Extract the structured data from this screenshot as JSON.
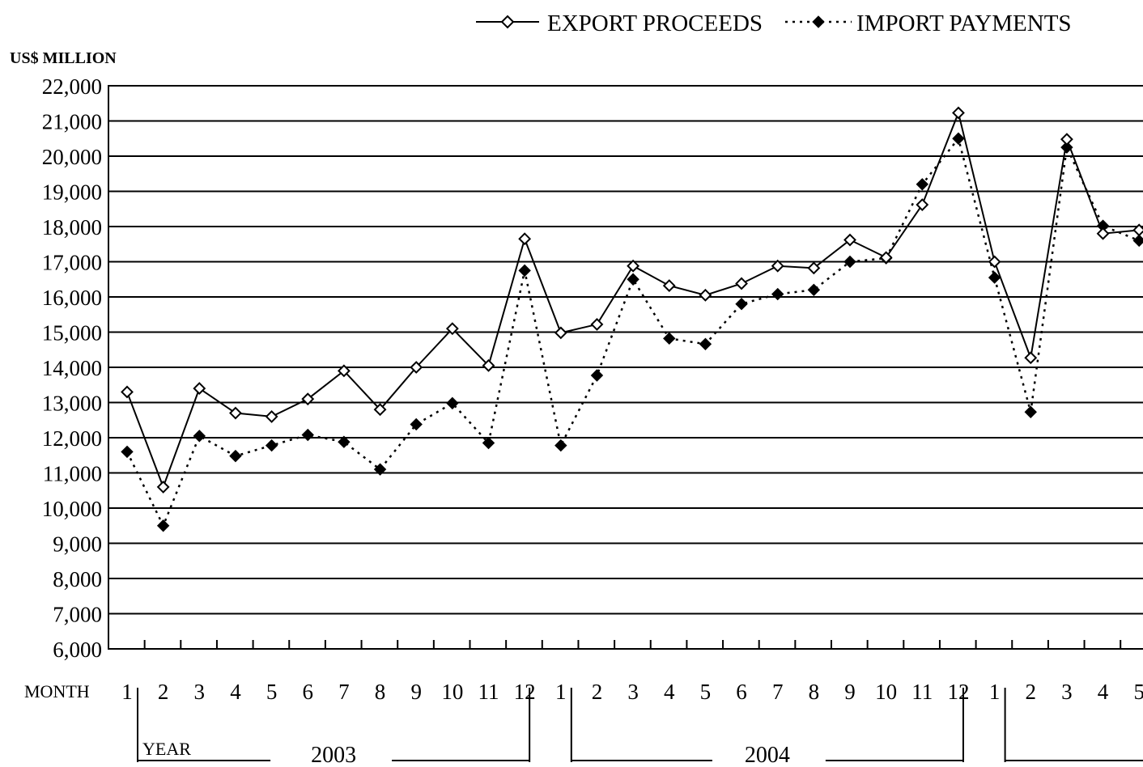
{
  "legend": {
    "export_label": "EXPORT PROCEEDS",
    "import_label": "IMPORT PAYMENTS"
  },
  "axis": {
    "ylabel": "US$ MILLION",
    "xlabel": "MONTH",
    "year_label": "YEAR"
  },
  "chart_data": {
    "type": "line",
    "ylabel": "US$ MILLION",
    "xlabel": "MONTH",
    "ylim": [
      6000,
      22000
    ],
    "y_ticks": [
      6000,
      7000,
      8000,
      9000,
      10000,
      11000,
      12000,
      13000,
      14000,
      15000,
      16000,
      17000,
      18000,
      19000,
      20000,
      21000,
      22000
    ],
    "y_tick_labels": [
      "6,000",
      "7,000",
      "8,000",
      "9,000",
      "10,000",
      "11,000",
      "12,000",
      "13,000",
      "14,000",
      "15,000",
      "16,000",
      "17,000",
      "18,000",
      "19,000",
      "20,000",
      "21,000",
      "22,000"
    ],
    "grid": true,
    "legend_position": "top-right",
    "categories": [
      "1",
      "2",
      "3",
      "4",
      "5",
      "6",
      "7",
      "8",
      "9",
      "10",
      "11",
      "12",
      "1",
      "2",
      "3",
      "4",
      "5",
      "6",
      "7",
      "8",
      "9",
      "10",
      "11",
      "12",
      "1",
      "2",
      "3",
      "4",
      "5"
    ],
    "years": [
      {
        "label": "2003",
        "start_index": 0,
        "end_index": 11
      },
      {
        "label": "2004",
        "start_index": 12,
        "end_index": 23
      },
      {
        "label": "",
        "start_index": 24,
        "end_index": 28
      }
    ],
    "series": [
      {
        "name": "EXPORT PROCEEDS",
        "marker": "open-diamond",
        "line": "solid",
        "values": [
          13300,
          10600,
          13400,
          12700,
          12600,
          13100,
          13900,
          12800,
          14000,
          15100,
          14050,
          17650,
          14980,
          15220,
          16880,
          16320,
          16050,
          16380,
          16880,
          16820,
          17620,
          17120,
          18620,
          21230,
          17000,
          14270,
          20480,
          17800,
          17900
        ]
      },
      {
        "name": "IMPORT PAYMENTS",
        "marker": "filled-diamond",
        "line": "dotted",
        "values": [
          11600,
          9500,
          12050,
          11480,
          11780,
          12080,
          11880,
          11100,
          12380,
          12980,
          11850,
          16750,
          11780,
          13770,
          16500,
          14820,
          14660,
          15800,
          16080,
          16200,
          17000,
          17100,
          19200,
          20500,
          16550,
          12730,
          20250,
          18020,
          17600
        ]
      }
    ]
  }
}
